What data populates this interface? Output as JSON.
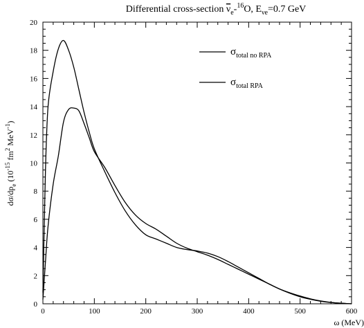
{
  "chart_data": {
    "type": "line",
    "title": {
      "prefix": "Differential cross-section ",
      "nu": "ν",
      "nu_sub": "e",
      "dash": "-",
      "isotope": "16",
      "nucleus": "O, E",
      "energy_sub": "νe",
      "energy": "=0.7 GeV"
    },
    "xlabel": "ω (MeV)",
    "ylabel": {
      "main": "dσ/dp",
      "sub": "e",
      "units_open": " (10",
      "exp1": "-15",
      "units_mid": " fm",
      "exp2": "2",
      "units_end": " MeV",
      "exp3": "-1",
      "close": ")"
    },
    "xlim": [
      0,
      600
    ],
    "ylim": [
      0,
      20
    ],
    "x_ticks": [
      "0",
      "100",
      "200",
      "300",
      "400",
      "500",
      "600"
    ],
    "y_ticks": [
      "0",
      "2",
      "4",
      "6",
      "8",
      "10",
      "12",
      "14",
      "16",
      "18",
      "20"
    ],
    "x_tick_values": [
      0,
      100,
      200,
      300,
      400,
      500,
      600
    ],
    "y_tick_values": [
      0,
      2,
      4,
      6,
      8,
      10,
      12,
      14,
      16,
      18,
      20
    ],
    "grid": false,
    "legend_position": "top-right",
    "series": [
      {
        "name": "no RPA",
        "legend_symbol": "σ",
        "legend_sub": "total no RPA",
        "x": [
          0,
          5,
          10,
          20,
          30,
          40,
          50,
          60,
          70,
          80,
          90,
          100,
          120,
          140,
          160,
          180,
          200,
          220,
          240,
          260,
          280,
          300,
          320,
          340,
          360,
          380,
          400,
          420,
          440,
          460,
          480,
          500,
          520,
          540,
          560,
          580,
          600
        ],
        "y": [
          0.8,
          9.5,
          14.0,
          16.5,
          18.1,
          18.7,
          18.0,
          16.8,
          15.2,
          13.6,
          12.2,
          11.0,
          9.4,
          7.9,
          6.6,
          5.6,
          4.9,
          4.6,
          4.3,
          4.0,
          3.85,
          3.75,
          3.6,
          3.35,
          3.0,
          2.6,
          2.2,
          1.8,
          1.4,
          1.05,
          0.75,
          0.5,
          0.32,
          0.18,
          0.09,
          0.04,
          0.0
        ]
      },
      {
        "name": "RPA",
        "legend_symbol": "σ",
        "legend_sub": "total RPA",
        "x": [
          0,
          5,
          10,
          20,
          30,
          40,
          50,
          60,
          70,
          80,
          90,
          100,
          120,
          140,
          160,
          180,
          200,
          220,
          240,
          260,
          280,
          300,
          320,
          340,
          360,
          380,
          400,
          420,
          440,
          460,
          480,
          500,
          520,
          540,
          560,
          580,
          600
        ],
        "y": [
          0.3,
          3.0,
          5.5,
          8.5,
          10.5,
          12.9,
          13.8,
          13.9,
          13.7,
          12.8,
          11.8,
          10.8,
          9.7,
          8.4,
          7.2,
          6.3,
          5.7,
          5.3,
          4.8,
          4.3,
          3.95,
          3.7,
          3.45,
          3.15,
          2.8,
          2.45,
          2.1,
          1.75,
          1.4,
          1.05,
          0.78,
          0.55,
          0.35,
          0.2,
          0.1,
          0.04,
          0.0
        ]
      }
    ]
  }
}
